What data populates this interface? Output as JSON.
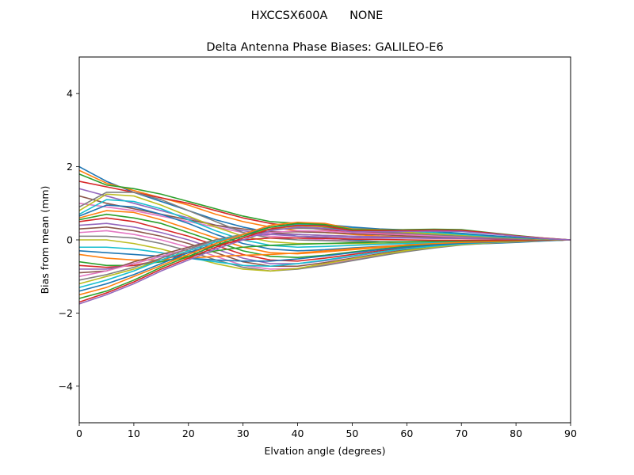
{
  "figure": {
    "suptitle": "HXCCSX600A      NONE"
  },
  "chart_data": {
    "type": "line",
    "title": "Delta Antenna Phase Biases: GALILEO-E6",
    "xlabel": "Elvation angle (degrees)",
    "ylabel": "Bias from mean (mm)",
    "xlim": [
      0,
      90
    ],
    "ylim": [
      -5,
      5
    ],
    "x_ticks": [
      0,
      10,
      20,
      30,
      40,
      50,
      60,
      70,
      80,
      90
    ],
    "y_ticks": [
      -4,
      -2,
      0,
      2,
      4
    ],
    "x_tick_labels": [
      "0",
      "10",
      "20",
      "30",
      "40",
      "50",
      "60",
      "70",
      "80",
      "90"
    ],
    "y_tick_labels": [
      "−4",
      "−2",
      "0",
      "2",
      "4"
    ],
    "grid": false,
    "legend": "none",
    "x": [
      0,
      5,
      10,
      15,
      20,
      25,
      30,
      35,
      40,
      45,
      50,
      55,
      60,
      65,
      70,
      75,
      80,
      85,
      90
    ],
    "colors": [
      "#1f77b4",
      "#ff7f0e",
      "#2ca02c",
      "#d62728",
      "#9467bd",
      "#8c564b",
      "#e377c2",
      "#7f7f7f",
      "#bcbd22",
      "#17becf"
    ],
    "series": [
      {
        "values": [
          2.0,
          1.6,
          1.3,
          1.05,
          0.8,
          0.55,
          0.35,
          0.2,
          0.1,
          0.05,
          0.0,
          -0.05,
          -0.1,
          -0.12,
          -0.12,
          -0.1,
          -0.07,
          -0.03,
          0.0
        ]
      },
      {
        "values": [
          1.9,
          1.55,
          1.35,
          1.15,
          0.95,
          0.7,
          0.5,
          0.35,
          0.25,
          0.2,
          0.15,
          0.1,
          0.08,
          0.06,
          0.05,
          0.04,
          0.03,
          0.01,
          0.0
        ]
      },
      {
        "values": [
          1.8,
          1.5,
          1.4,
          1.25,
          1.05,
          0.85,
          0.65,
          0.5,
          0.45,
          0.35,
          0.25,
          0.2,
          0.15,
          0.12,
          0.1,
          0.07,
          0.05,
          0.02,
          0.0
        ]
      },
      {
        "values": [
          1.6,
          1.45,
          1.3,
          1.15,
          1.0,
          0.8,
          0.6,
          0.45,
          0.35,
          0.28,
          0.22,
          0.18,
          0.15,
          0.13,
          0.1,
          0.08,
          0.05,
          0.02,
          0.0
        ]
      },
      {
        "values": [
          1.4,
          1.2,
          1.0,
          0.8,
          0.6,
          0.4,
          0.25,
          0.15,
          0.1,
          0.08,
          0.06,
          0.05,
          0.05,
          0.04,
          0.04,
          0.03,
          0.02,
          0.01,
          0.0
        ]
      },
      {
        "values": [
          1.2,
          1.0,
          0.85,
          0.7,
          0.55,
          0.4,
          0.3,
          0.2,
          0.15,
          0.12,
          0.1,
          0.08,
          0.07,
          0.06,
          0.05,
          0.04,
          0.03,
          0.01,
          0.0
        ]
      },
      {
        "values": [
          1.0,
          0.9,
          0.8,
          0.65,
          0.5,
          0.35,
          0.2,
          0.1,
          0.05,
          0.0,
          -0.03,
          -0.05,
          -0.06,
          -0.07,
          -0.07,
          -0.06,
          -0.04,
          -0.02,
          0.0
        ]
      },
      {
        "values": [
          0.9,
          1.3,
          1.3,
          1.1,
          0.8,
          0.5,
          0.2,
          0.05,
          0.0,
          -0.02,
          -0.04,
          -0.05,
          -0.06,
          -0.06,
          -0.06,
          -0.05,
          -0.04,
          -0.02,
          0.0
        ]
      },
      {
        "values": [
          0.8,
          1.25,
          1.2,
          0.95,
          0.65,
          0.35,
          0.1,
          -0.05,
          -0.1,
          -0.1,
          -0.1,
          -0.1,
          -0.09,
          -0.08,
          -0.07,
          -0.06,
          -0.04,
          -0.02,
          0.0
        ]
      },
      {
        "values": [
          0.7,
          1.1,
          1.05,
          0.85,
          0.55,
          0.25,
          0.0,
          -0.15,
          -0.2,
          -0.18,
          -0.15,
          -0.12,
          -0.1,
          -0.08,
          -0.07,
          -0.05,
          -0.04,
          -0.02,
          0.0
        ]
      },
      {
        "values": [
          0.65,
          0.95,
          0.9,
          0.7,
          0.45,
          0.15,
          -0.1,
          -0.25,
          -0.3,
          -0.27,
          -0.22,
          -0.18,
          -0.14,
          -0.11,
          -0.08,
          -0.06,
          -0.04,
          -0.02,
          0.0
        ]
      },
      {
        "values": [
          0.6,
          0.8,
          0.75,
          0.55,
          0.3,
          0.05,
          -0.2,
          -0.35,
          -0.38,
          -0.33,
          -0.27,
          -0.21,
          -0.16,
          -0.12,
          -0.09,
          -0.06,
          -0.04,
          -0.02,
          0.0
        ]
      },
      {
        "values": [
          0.55,
          0.7,
          0.6,
          0.45,
          0.2,
          -0.05,
          -0.3,
          -0.45,
          -0.48,
          -0.42,
          -0.33,
          -0.25,
          -0.18,
          -0.13,
          -0.09,
          -0.06,
          -0.04,
          -0.02,
          0.0
        ]
      },
      {
        "values": [
          0.5,
          0.6,
          0.5,
          0.3,
          0.1,
          -0.15,
          -0.4,
          -0.55,
          -0.58,
          -0.5,
          -0.4,
          -0.3,
          -0.21,
          -0.15,
          -0.1,
          -0.07,
          -0.04,
          -0.02,
          0.0
        ]
      },
      {
        "values": [
          0.4,
          0.45,
          0.35,
          0.2,
          0.0,
          -0.25,
          -0.5,
          -0.65,
          -0.65,
          -0.57,
          -0.45,
          -0.34,
          -0.24,
          -0.17,
          -0.11,
          -0.07,
          -0.05,
          -0.02,
          0.0
        ]
      },
      {
        "values": [
          0.3,
          0.35,
          0.25,
          0.1,
          -0.1,
          -0.35,
          -0.6,
          -0.72,
          -0.72,
          -0.62,
          -0.5,
          -0.38,
          -0.27,
          -0.19,
          -0.12,
          -0.08,
          -0.05,
          -0.02,
          0.0
        ]
      },
      {
        "values": [
          0.2,
          0.25,
          0.15,
          0.0,
          -0.2,
          -0.45,
          -0.7,
          -0.8,
          -0.78,
          -0.68,
          -0.55,
          -0.42,
          -0.3,
          -0.2,
          -0.13,
          -0.08,
          -0.05,
          -0.02,
          0.0
        ]
      },
      {
        "values": [
          0.1,
          0.1,
          0.05,
          -0.1,
          -0.3,
          -0.55,
          -0.75,
          -0.85,
          -0.8,
          -0.7,
          -0.57,
          -0.44,
          -0.32,
          -0.22,
          -0.14,
          -0.09,
          -0.05,
          -0.02,
          0.0
        ]
      },
      {
        "values": [
          0.0,
          0.0,
          -0.1,
          -0.25,
          -0.45,
          -0.65,
          -0.8,
          -0.85,
          -0.78,
          -0.65,
          -0.52,
          -0.4,
          -0.29,
          -0.2,
          -0.13,
          -0.08,
          -0.05,
          -0.02,
          0.0
        ]
      },
      {
        "values": [
          -0.2,
          -0.2,
          -0.25,
          -0.35,
          -0.5,
          -0.6,
          -0.7,
          -0.72,
          -0.65,
          -0.55,
          -0.44,
          -0.33,
          -0.24,
          -0.17,
          -0.11,
          -0.07,
          -0.04,
          -0.02,
          0.0
        ]
      },
      {
        "values": [
          -0.3,
          -0.35,
          -0.4,
          -0.45,
          -0.5,
          -0.55,
          -0.58,
          -0.58,
          -0.52,
          -0.44,
          -0.35,
          -0.27,
          -0.2,
          -0.14,
          -0.09,
          -0.06,
          -0.04,
          -0.02,
          0.0
        ]
      },
      {
        "values": [
          -0.4,
          -0.5,
          -0.55,
          -0.55,
          -0.5,
          -0.45,
          -0.42,
          -0.4,
          -0.36,
          -0.3,
          -0.24,
          -0.19,
          -0.14,
          -0.1,
          -0.07,
          -0.05,
          -0.03,
          -0.01,
          0.0
        ]
      },
      {
        "values": [
          -0.6,
          -0.7,
          -0.7,
          -0.6,
          -0.45,
          -0.3,
          -0.2,
          -0.15,
          -0.12,
          -0.1,
          -0.08,
          -0.06,
          -0.05,
          -0.04,
          -0.03,
          -0.02,
          -0.01,
          0.0,
          0.0
        ]
      },
      {
        "values": [
          -0.7,
          -0.75,
          -0.7,
          -0.55,
          -0.35,
          -0.15,
          0.0,
          0.05,
          0.05,
          0.04,
          0.02,
          0.01,
          0.0,
          -0.01,
          -0.01,
          -0.01,
          0.0,
          0.0,
          0.0
        ]
      },
      {
        "values": [
          -0.8,
          -0.8,
          -0.65,
          -0.45,
          -0.25,
          -0.05,
          0.1,
          0.15,
          0.15,
          0.12,
          0.1,
          0.08,
          0.06,
          0.05,
          0.04,
          0.03,
          0.02,
          0.01,
          0.0
        ]
      },
      {
        "values": [
          -0.9,
          -0.85,
          -0.6,
          -0.4,
          -0.2,
          0.0,
          0.15,
          0.22,
          0.22,
          0.2,
          0.17,
          0.14,
          0.11,
          0.09,
          0.07,
          0.05,
          0.03,
          0.01,
          0.0
        ]
      },
      {
        "values": [
          -1.0,
          -0.85,
          -0.65,
          -0.45,
          -0.25,
          -0.05,
          0.1,
          0.2,
          0.25,
          0.24,
          0.2,
          0.17,
          0.14,
          0.11,
          0.08,
          0.06,
          0.04,
          0.02,
          0.0
        ]
      },
      {
        "values": [
          -1.1,
          -0.95,
          -0.75,
          -0.5,
          -0.25,
          0.0,
          0.15,
          0.28,
          0.32,
          0.3,
          0.26,
          0.22,
          0.18,
          0.14,
          0.1,
          0.07,
          0.04,
          0.02,
          0.0
        ]
      },
      {
        "values": [
          -1.2,
          -1.0,
          -0.8,
          -0.55,
          -0.3,
          -0.05,
          0.15,
          0.3,
          0.38,
          0.36,
          0.3,
          0.25,
          0.21,
          0.17,
          0.13,
          0.09,
          0.05,
          0.02,
          0.0
        ]
      },
      {
        "values": [
          -1.3,
          -1.1,
          -0.85,
          -0.55,
          -0.3,
          -0.05,
          0.15,
          0.35,
          0.42,
          0.4,
          0.33,
          0.28,
          0.24,
          0.2,
          0.15,
          0.1,
          0.06,
          0.03,
          0.0
        ]
      },
      {
        "values": [
          -1.4,
          -1.2,
          -0.95,
          -0.65,
          -0.35,
          -0.1,
          0.15,
          0.35,
          0.45,
          0.42,
          0.35,
          0.3,
          0.27,
          0.23,
          0.18,
          0.12,
          0.07,
          0.03,
          0.0
        ]
      },
      {
        "values": [
          -1.5,
          -1.3,
          -1.0,
          -0.7,
          -0.4,
          -0.1,
          0.15,
          0.4,
          0.48,
          0.45,
          0.3,
          0.28,
          0.27,
          0.27,
          0.25,
          0.18,
          0.1,
          0.04,
          0.0
        ]
      },
      {
        "values": [
          -1.6,
          -1.4,
          -1.1,
          -0.75,
          -0.45,
          -0.15,
          0.1,
          0.35,
          0.45,
          0.42,
          0.28,
          0.27,
          0.28,
          0.29,
          0.28,
          0.2,
          0.12,
          0.05,
          0.0
        ]
      },
      {
        "values": [
          -1.7,
          -1.45,
          -1.15,
          -0.8,
          -0.5,
          -0.2,
          0.05,
          0.3,
          0.4,
          0.38,
          0.25,
          0.25,
          0.26,
          0.27,
          0.26,
          0.19,
          0.11,
          0.05,
          0.0
        ]
      },
      {
        "values": [
          -1.75,
          -1.5,
          -1.2,
          -0.85,
          -0.55,
          -0.25,
          0.0,
          0.25,
          0.35,
          0.32,
          0.22,
          0.22,
          0.23,
          0.24,
          0.23,
          0.17,
          0.1,
          0.04,
          0.0
        ]
      }
    ]
  }
}
